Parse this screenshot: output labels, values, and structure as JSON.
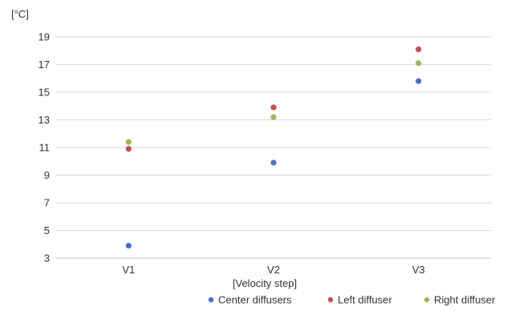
{
  "chart_data": {
    "type": "scatter",
    "title": "",
    "ylabel": "[°C]",
    "xlabel": "[Velocity step]",
    "categories": [
      "V1",
      "V2",
      "V3"
    ],
    "ylim": [
      3,
      19
    ],
    "yticks": [
      3,
      5,
      7,
      9,
      11,
      13,
      15,
      17,
      19
    ],
    "grid": true,
    "legend_position": "bottom",
    "series": [
      {
        "name": "Center diffusers",
        "color": "#4472c4",
        "values": [
          3.9,
          9.9,
          15.8
        ]
      },
      {
        "name": "Left diffuser",
        "color": "#c0504d",
        "values": [
          10.9,
          13.9,
          18.1
        ]
      },
      {
        "name": "Right diffuser",
        "color": "#9bbb59",
        "values": [
          11.4,
          13.2,
          17.1
        ]
      }
    ]
  }
}
